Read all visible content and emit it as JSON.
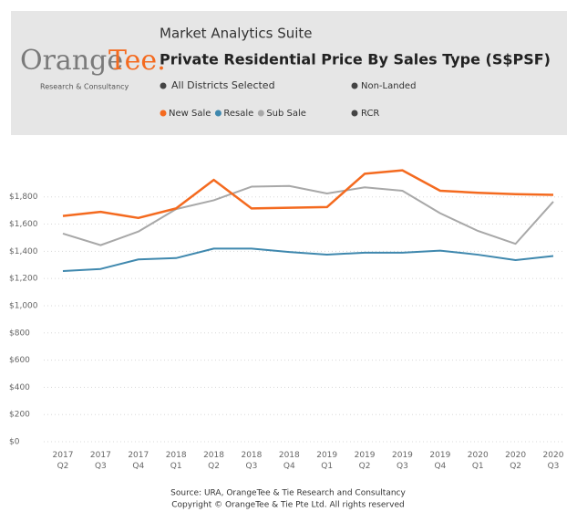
{
  "header": {
    "logo_main": "Orange",
    "logo_accent": "Tee.",
    "logo_sub": "Research & Consultancy",
    "suite": "Market Analytics Suite",
    "filter_district": "All Districts Selected",
    "filter_property": "Non-Landed",
    "filter_region": "RCR"
  },
  "chart_data": {
    "type": "line",
    "title": "Private Residential Price By Sales Type (S$PSF)",
    "categories": [
      "2017\nQ2",
      "2017\nQ3",
      "2017\nQ4",
      "2018\nQ1",
      "2018\nQ2",
      "2018\nQ3",
      "2018\nQ4",
      "2019\nQ1",
      "2019\nQ2",
      "2019\nQ3",
      "2019\nQ4",
      "2020\nQ1",
      "2020\nQ2",
      "2020\nQ3"
    ],
    "series": [
      {
        "name": "New Sale",
        "color": "#f46a1f",
        "values": [
          1660,
          1690,
          1645,
          1715,
          1925,
          1715,
          1720,
          1725,
          1970,
          1995,
          1845,
          1830,
          1820,
          1815
        ]
      },
      {
        "name": "Resale",
        "color": "#3f88ae",
        "values": [
          1255,
          1270,
          1340,
          1350,
          1420,
          1420,
          1395,
          1375,
          1390,
          1390,
          1405,
          1375,
          1335,
          1365
        ]
      },
      {
        "name": "Sub Sale",
        "color": "#a8a8a8",
        "values": [
          1530,
          1445,
          1545,
          1710,
          1775,
          1875,
          1880,
          1825,
          1870,
          1845,
          1680,
          1550,
          1455,
          1765
        ]
      }
    ],
    "ylim": [
      0,
      2100
    ],
    "yticks": [
      {
        "value": 0,
        "label": "$0"
      },
      {
        "value": 200,
        "label": "$200"
      },
      {
        "value": 400,
        "label": "$400"
      },
      {
        "value": 600,
        "label": "$600"
      },
      {
        "value": 800,
        "label": "$800"
      },
      {
        "value": 1000,
        "label": "$1,000"
      },
      {
        "value": 1200,
        "label": "$1,200"
      },
      {
        "value": 1400,
        "label": "$1,400"
      },
      {
        "value": 1600,
        "label": "$1,600"
      },
      {
        "value": 1800,
        "label": "$1,800"
      }
    ],
    "grid": true
  },
  "footer": {
    "source": "Source: URA, OrangeTee & Tie Research and Consultancy",
    "copyright": "Copyright © OrangeTee & Tie Pte Ltd. All rights reserved"
  }
}
